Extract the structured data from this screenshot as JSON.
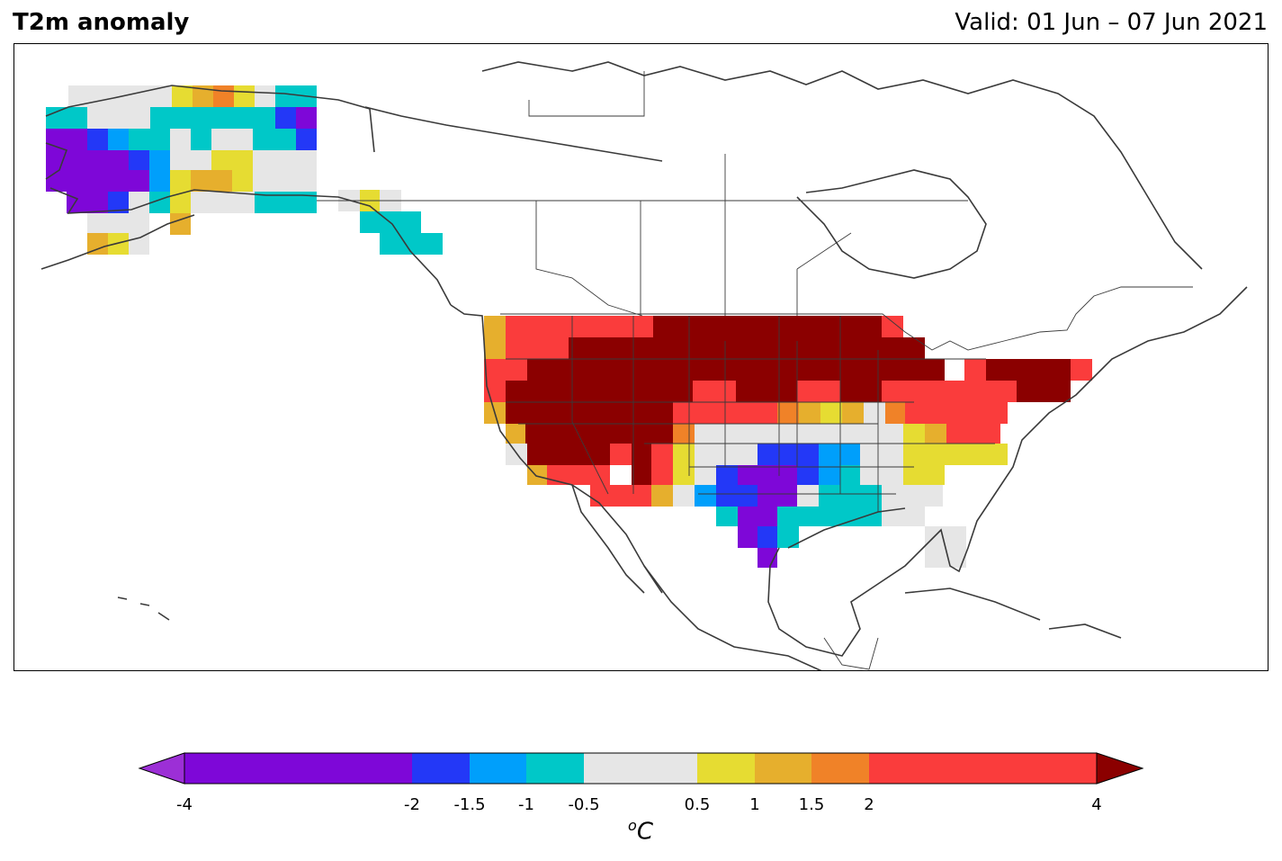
{
  "title": "T2m anomaly",
  "valid": "Valid: 01 Jun – 07 Jun 2021",
  "colorbar": {
    "ticks": [
      "-4",
      "-2",
      "-1.5",
      "-1",
      "-0.5",
      "0.5",
      "1",
      "1.5",
      "2",
      "4"
    ],
    "unit_base": "C",
    "unit_sup": "o",
    "min_extend_color": "#9c2fd6",
    "max_extend_color": "#8b0000",
    "levels": [
      {
        "range": "-4 to -2",
        "color": "#7e07d8"
      },
      {
        "range": "-2 to -1.5",
        "color": "#2338f7"
      },
      {
        "range": "-1.5 to -1",
        "color": "#009ffb"
      },
      {
        "range": "-1 to -0.5",
        "color": "#00c8c8"
      },
      {
        "range": "-0.5 to 0.5",
        "color": "#e6e6e6"
      },
      {
        "range": "0.5 to 1",
        "color": "#e6dc32"
      },
      {
        "range": "1 to 1.5",
        "color": "#e6af2d"
      },
      {
        "range": "1.5 to 2",
        "color": "#f08228"
      },
      {
        "range": "2 to 4",
        "color": "#fa3c3c"
      }
    ]
  },
  "map": {
    "region": "North America",
    "description_colors": {
      "coastline": "#3a3a3a",
      "borders": "#3a3a3a"
    }
  }
}
